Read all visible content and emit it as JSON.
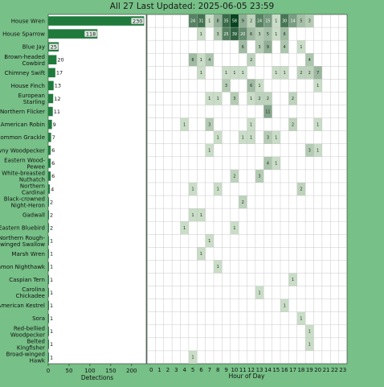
{
  "title": "All 27 Last Updated: 2025-06-05 23:59",
  "colors": {
    "background": "#77c087",
    "bar": "#1f7a3c",
    "panel": "#ffffff",
    "heat_low": "#e6f4e0",
    "heat_high": "#08431e"
  },
  "chart_data": [
    {
      "type": "bar",
      "orientation": "horizontal",
      "categories": [
        "House Wren",
        "House Sparrow",
        "Blue Jay",
        "Brown-headed Cowbird",
        "Chimney Swift",
        "House Finch",
        "European Starling",
        "Northern Flicker",
        "American Robin",
        "Common Grackle",
        "Downy Woodpecker",
        "Eastern Wood-Pewee",
        "White-breasted Nuthatch",
        "Northern Cardinal",
        "Black-crowned Night-Heron",
        "Gadwall",
        "Eastern Bluebird",
        "Northern Rough-winged Swallow",
        "Marsh Wren",
        "Common Nighthawk",
        "Caspian Tern",
        "Carolina Chickadee",
        "American Kestrel",
        "Sora",
        "Red-bellied Woodpecker",
        "Belted Kingfisher",
        "Broad-winged Hawk"
      ],
      "category_labels": [
        [
          "House Wren"
        ],
        [
          "House Sparrow"
        ],
        [
          "Blue Jay"
        ],
        [
          "Brown-headed",
          "Cowbird"
        ],
        [
          "Chimney Swift"
        ],
        [
          "House Finch"
        ],
        [
          "European",
          "Starling"
        ],
        [
          "Northern Flicker"
        ],
        [
          "American Robin"
        ],
        [
          "Common Grackle"
        ],
        [
          "owny Woodpecker"
        ],
        [
          "Eastern Wood-",
          "Pewee"
        ],
        [
          "White-breasted",
          "Nuthatch"
        ],
        [
          "Northern",
          "Cardinal"
        ],
        [
          "Black-crowned",
          "Night-Heron"
        ],
        [
          "Gadwall"
        ],
        [
          "Eastern Bluebird"
        ],
        [
          "Northern Rough-",
          "winged Swallow"
        ],
        [
          "Marsh Wren"
        ],
        [
          "ommon Nighthawk"
        ],
        [
          "Caspian Tern"
        ],
        [
          "Carolina",
          "Chickadee"
        ],
        [
          "American Kestrel"
        ],
        [
          "Sora"
        ],
        [
          "Red-bellied",
          "Woodpecker"
        ],
        [
          "Belted",
          "Kingfisher"
        ],
        [
          "Broad-winged",
          "Hawk"
        ]
      ],
      "values": [
        230,
        118,
        25,
        20,
        17,
        13,
        12,
        11,
        9,
        7,
        6,
        6,
        6,
        4,
        2,
        2,
        2,
        1,
        1,
        1,
        1,
        1,
        1,
        1,
        1,
        1,
        1
      ],
      "xlabel": "Detections",
      "xticks": [
        0,
        50,
        100,
        150,
        200
      ],
      "xlim": [
        0,
        235
      ],
      "grid": false
    },
    {
      "type": "heatmap",
      "xlabel": "Hour of Day",
      "x": [
        0,
        1,
        2,
        3,
        4,
        5,
        6,
        7,
        8,
        9,
        10,
        11,
        12,
        13,
        14,
        15,
        16,
        17,
        18,
        19,
        20,
        21,
        22,
        23
      ],
      "rows": [
        [
          0,
          0,
          0,
          0,
          0,
          24,
          31,
          1,
          8,
          35,
          58,
          9,
          2,
          24,
          15,
          1,
          30,
          14,
          5,
          3,
          0,
          0,
          0,
          0
        ],
        [
          0,
          0,
          0,
          0,
          0,
          0,
          1,
          0,
          3,
          25,
          39,
          20,
          6,
          3,
          5,
          1,
          6,
          0,
          0,
          0,
          0,
          0,
          0,
          0
        ],
        [
          0,
          0,
          0,
          0,
          0,
          0,
          0,
          0,
          0,
          0,
          0,
          6,
          0,
          3,
          9,
          0,
          4,
          0,
          1,
          0,
          0,
          0,
          0,
          0
        ],
        [
          0,
          0,
          0,
          0,
          0,
          6,
          1,
          4,
          0,
          0,
          0,
          0,
          2,
          0,
          0,
          0,
          0,
          0,
          0,
          4,
          0,
          0,
          0,
          0
        ],
        [
          0,
          0,
          0,
          0,
          0,
          0,
          1,
          0,
          0,
          1,
          1,
          1,
          0,
          0,
          0,
          1,
          1,
          0,
          2,
          2,
          7,
          0,
          0,
          0
        ],
        [
          0,
          0,
          0,
          0,
          0,
          0,
          0,
          0,
          0,
          3,
          0,
          0,
          6,
          1,
          0,
          0,
          0,
          0,
          0,
          0,
          1,
          0,
          0,
          0
        ],
        [
          0,
          0,
          0,
          0,
          0,
          0,
          0,
          1,
          1,
          0,
          3,
          0,
          1,
          2,
          2,
          0,
          0,
          2,
          0,
          0,
          0,
          0,
          0,
          0
        ],
        [
          0,
          0,
          0,
          0,
          0,
          0,
          0,
          0,
          0,
          0,
          0,
          0,
          0,
          0,
          11,
          0,
          0,
          0,
          0,
          0,
          0,
          0,
          0,
          0
        ],
        [
          0,
          0,
          0,
          0,
          1,
          0,
          0,
          3,
          0,
          0,
          0,
          0,
          1,
          0,
          0,
          0,
          0,
          2,
          0,
          0,
          1,
          0,
          0,
          0
        ],
        [
          0,
          0,
          0,
          0,
          0,
          0,
          0,
          0,
          1,
          0,
          0,
          1,
          1,
          0,
          3,
          1,
          0,
          0,
          0,
          0,
          0,
          0,
          0,
          0
        ],
        [
          0,
          0,
          0,
          0,
          0,
          0,
          0,
          1,
          0,
          0,
          0,
          0,
          0,
          0,
          0,
          0,
          0,
          0,
          0,
          3,
          1,
          0,
          0,
          0
        ],
        [
          0,
          0,
          0,
          0,
          0,
          0,
          0,
          0,
          0,
          0,
          0,
          0,
          0,
          0,
          4,
          1,
          0,
          0,
          0,
          0,
          0,
          0,
          0,
          0
        ],
        [
          0,
          0,
          0,
          0,
          0,
          0,
          0,
          0,
          0,
          0,
          2,
          0,
          0,
          3,
          0,
          0,
          0,
          0,
          0,
          0,
          0,
          0,
          0,
          0
        ],
        [
          0,
          0,
          0,
          0,
          0,
          1,
          0,
          0,
          1,
          0,
          0,
          0,
          0,
          0,
          0,
          0,
          0,
          0,
          2,
          0,
          0,
          0,
          0,
          0
        ],
        [
          0,
          0,
          0,
          0,
          0,
          0,
          0,
          0,
          0,
          0,
          0,
          2,
          0,
          0,
          0,
          0,
          0,
          0,
          0,
          0,
          0,
          0,
          0,
          0
        ],
        [
          0,
          0,
          0,
          0,
          0,
          1,
          1,
          0,
          0,
          0,
          0,
          0,
          0,
          0,
          0,
          0,
          0,
          0,
          0,
          0,
          0,
          0,
          0,
          0
        ],
        [
          0,
          0,
          0,
          0,
          1,
          0,
          0,
          0,
          0,
          0,
          1,
          0,
          0,
          0,
          0,
          0,
          0,
          0,
          0,
          0,
          0,
          0,
          0,
          0
        ],
        [
          0,
          0,
          0,
          0,
          0,
          0,
          0,
          1,
          0,
          0,
          0,
          0,
          0,
          0,
          0,
          0,
          0,
          0,
          0,
          0,
          0,
          0,
          0,
          0
        ],
        [
          0,
          0,
          0,
          0,
          0,
          0,
          1,
          0,
          0,
          0,
          0,
          0,
          0,
          0,
          0,
          0,
          0,
          0,
          0,
          0,
          0,
          0,
          0,
          0
        ],
        [
          0,
          0,
          0,
          0,
          0,
          0,
          0,
          0,
          1,
          0,
          0,
          0,
          0,
          0,
          0,
          0,
          0,
          0,
          0,
          0,
          0,
          0,
          0,
          0
        ],
        [
          0,
          0,
          0,
          0,
          0,
          0,
          0,
          0,
          0,
          0,
          0,
          0,
          0,
          0,
          0,
          0,
          0,
          1,
          0,
          0,
          0,
          0,
          0,
          0
        ],
        [
          0,
          0,
          0,
          0,
          0,
          0,
          0,
          0,
          0,
          0,
          0,
          0,
          0,
          1,
          0,
          0,
          0,
          0,
          0,
          0,
          0,
          0,
          0,
          0
        ],
        [
          0,
          0,
          0,
          0,
          0,
          0,
          0,
          0,
          0,
          0,
          0,
          0,
          0,
          0,
          0,
          0,
          1,
          0,
          0,
          0,
          0,
          0,
          0,
          0
        ],
        [
          0,
          0,
          0,
          0,
          0,
          0,
          0,
          0,
          0,
          0,
          0,
          0,
          0,
          0,
          0,
          0,
          0,
          0,
          1,
          0,
          0,
          0,
          0,
          0
        ],
        [
          0,
          0,
          0,
          0,
          0,
          0,
          0,
          0,
          0,
          0,
          0,
          0,
          0,
          0,
          0,
          0,
          0,
          0,
          0,
          1,
          0,
          0,
          0,
          0
        ],
        [
          0,
          0,
          0,
          0,
          0,
          0,
          0,
          0,
          0,
          0,
          0,
          0,
          0,
          0,
          0,
          0,
          0,
          0,
          0,
          1,
          0,
          0,
          0,
          0
        ],
        [
          0,
          0,
          0,
          0,
          0,
          1,
          0,
          0,
          0,
          0,
          0,
          0,
          0,
          0,
          0,
          0,
          0,
          0,
          0,
          0,
          0,
          0,
          0,
          0
        ]
      ],
      "grid": true,
      "highlighted_hour": 23
    }
  ]
}
